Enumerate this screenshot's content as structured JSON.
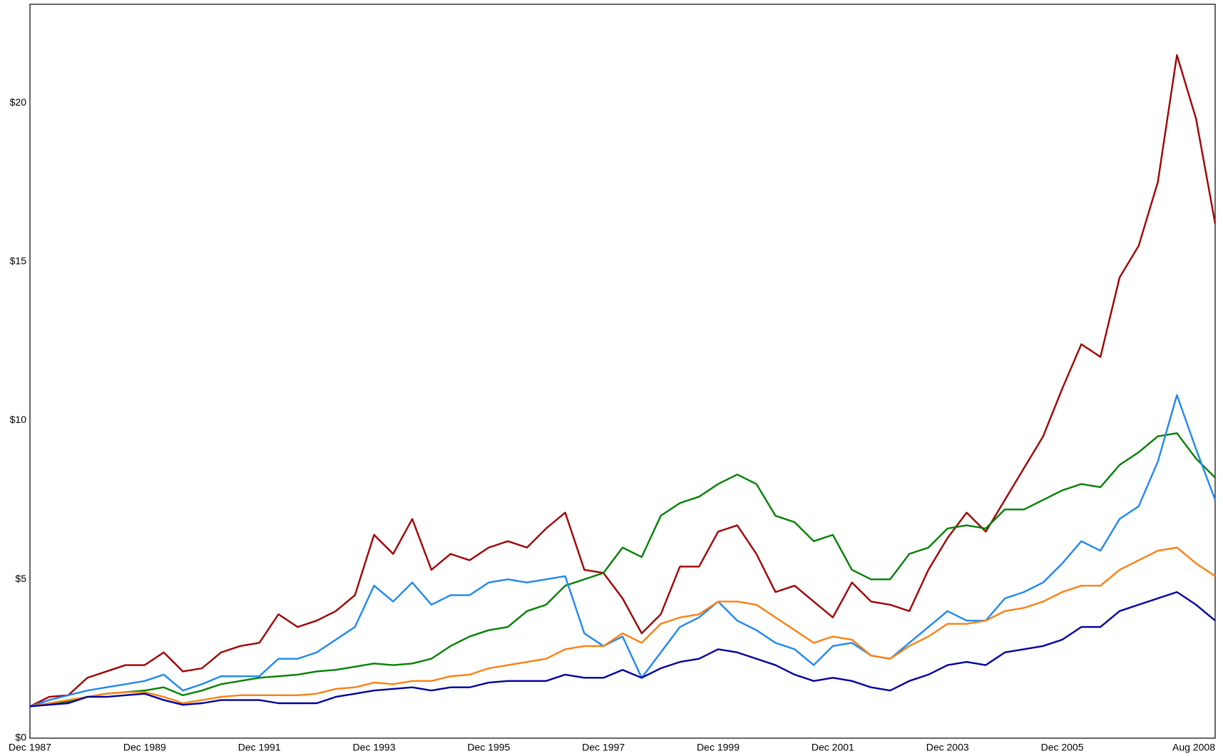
{
  "chart_data": {
    "type": "line",
    "x": [
      "Dec 1987",
      "Apr 1988",
      "Aug 1988",
      "Dec 1988",
      "Apr 1989",
      "Aug 1989",
      "Dec 1989",
      "Apr 1990",
      "Aug 1990",
      "Dec 1990",
      "Apr 1991",
      "Aug 1991",
      "Dec 1991",
      "Apr 1992",
      "Aug 1992",
      "Dec 1992",
      "Apr 1993",
      "Aug 1993",
      "Dec 1993",
      "Apr 1994",
      "Aug 1994",
      "Dec 1994",
      "Apr 1995",
      "Aug 1995",
      "Dec 1995",
      "Apr 1996",
      "Aug 1996",
      "Dec 1996",
      "Apr 1997",
      "Aug 1997",
      "Dec 1997",
      "Apr 1998",
      "Aug 1998",
      "Dec 1998",
      "Apr 1999",
      "Aug 1999",
      "Dec 1999",
      "Apr 2000",
      "Aug 2000",
      "Dec 2000",
      "Apr 2001",
      "Aug 2001",
      "Dec 2001",
      "Apr 2002",
      "Aug 2002",
      "Dec 2002",
      "Apr 2003",
      "Aug 2003",
      "Dec 2003",
      "Apr 2004",
      "Aug 2004",
      "Dec 2004",
      "Apr 2005",
      "Aug 2005",
      "Dec 2005",
      "Apr 2006",
      "Aug 2006",
      "Dec 2006",
      "Apr 2007",
      "Aug 2007",
      "Dec 2007",
      "Apr 2008",
      "Aug 2008"
    ],
    "xticks": [
      "Dec 1987",
      "Dec 1989",
      "Dec 1991",
      "Dec 1993",
      "Dec 1995",
      "Dec 1997",
      "Dec 1999",
      "Dec 2001",
      "Dec 2003",
      "Dec 2005",
      "Aug 2008"
    ],
    "ylim": [
      0,
      23.1
    ],
    "yticks": [
      {
        "value": 0,
        "label": "$0"
      },
      {
        "value": 5,
        "label": "$5"
      },
      {
        "value": 10,
        "label": "$10"
      },
      {
        "value": 15,
        "label": "$15"
      },
      {
        "value": 20,
        "label": "$20"
      }
    ],
    "series": [
      {
        "color": "#a00000",
        "values": [
          1.0,
          1.3,
          1.35,
          1.9,
          2.1,
          2.3,
          2.3,
          2.7,
          2.1,
          2.2,
          2.7,
          2.9,
          3.0,
          3.9,
          3.5,
          3.7,
          4.0,
          4.5,
          6.4,
          5.8,
          6.9,
          5.3,
          5.8,
          5.6,
          6.0,
          6.2,
          6.0,
          6.6,
          7.1,
          5.3,
          5.2,
          4.4,
          3.3,
          3.9,
          5.4,
          5.4,
          6.5,
          6.7,
          5.8,
          4.6,
          4.8,
          4.3,
          3.8,
          4.9,
          4.3,
          4.2,
          4.0,
          5.3,
          6.3,
          7.1,
          6.5,
          7.5,
          8.5,
          9.5,
          11.0,
          12.4,
          12.0,
          14.5,
          15.5,
          17.5,
          21.5,
          19.5,
          16.2
        ]
      },
      {
        "color": "#008000",
        "values": [
          1.0,
          1.1,
          1.15,
          1.3,
          1.4,
          1.45,
          1.5,
          1.6,
          1.35,
          1.5,
          1.7,
          1.8,
          1.9,
          1.95,
          2.0,
          2.1,
          2.15,
          2.25,
          2.35,
          2.3,
          2.35,
          2.5,
          2.9,
          3.2,
          3.4,
          3.5,
          4.0,
          4.2,
          4.8,
          5.0,
          5.2,
          6.0,
          5.7,
          7.0,
          7.4,
          7.6,
          8.0,
          8.3,
          8.0,
          7.0,
          6.8,
          6.2,
          6.4,
          5.3,
          5.0,
          5.0,
          5.8,
          6.0,
          6.6,
          6.7,
          6.6,
          7.2,
          7.2,
          7.5,
          7.8,
          8.0,
          7.9,
          8.6,
          9.0,
          9.5,
          9.6,
          8.8,
          8.2
        ]
      },
      {
        "color": "#1e88f0",
        "values": [
          1.0,
          1.2,
          1.35,
          1.5,
          1.6,
          1.7,
          1.8,
          2.0,
          1.5,
          1.7,
          1.95,
          1.95,
          1.95,
          2.5,
          2.5,
          2.7,
          3.1,
          3.5,
          4.8,
          4.3,
          4.9,
          4.2,
          4.5,
          4.5,
          4.9,
          5.0,
          4.9,
          5.0,
          5.1,
          3.3,
          2.9,
          3.2,
          1.9,
          2.7,
          3.5,
          3.8,
          4.3,
          3.7,
          3.4,
          3.0,
          2.8,
          2.3,
          2.9,
          3.0,
          2.6,
          2.5,
          3.0,
          3.5,
          4.0,
          3.7,
          3.7,
          4.4,
          4.6,
          4.9,
          5.5,
          6.2,
          5.9,
          6.9,
          7.3,
          8.7,
          10.8,
          9.1,
          7.5
        ]
      },
      {
        "color": "#ff8010",
        "values": [
          1.0,
          1.1,
          1.2,
          1.3,
          1.4,
          1.45,
          1.45,
          1.3,
          1.1,
          1.2,
          1.3,
          1.35,
          1.35,
          1.35,
          1.35,
          1.4,
          1.55,
          1.6,
          1.75,
          1.7,
          1.8,
          1.8,
          1.95,
          2.0,
          2.2,
          2.3,
          2.4,
          2.5,
          2.8,
          2.9,
          2.9,
          3.3,
          3.0,
          3.6,
          3.8,
          3.9,
          4.3,
          4.3,
          4.2,
          3.8,
          3.4,
          3.0,
          3.2,
          3.1,
          2.6,
          2.5,
          2.9,
          3.2,
          3.6,
          3.6,
          3.7,
          4.0,
          4.1,
          4.3,
          4.6,
          4.8,
          4.8,
          5.3,
          5.6,
          5.9,
          6.0,
          5.5,
          5.1
        ]
      },
      {
        "color": "#0000a0",
        "values": [
          1.0,
          1.05,
          1.1,
          1.3,
          1.3,
          1.35,
          1.4,
          1.2,
          1.05,
          1.1,
          1.2,
          1.2,
          1.2,
          1.1,
          1.1,
          1.1,
          1.3,
          1.4,
          1.5,
          1.55,
          1.6,
          1.5,
          1.6,
          1.6,
          1.75,
          1.8,
          1.8,
          1.8,
          2.0,
          1.9,
          1.9,
          2.15,
          1.9,
          2.2,
          2.4,
          2.5,
          2.8,
          2.7,
          2.5,
          2.3,
          2.0,
          1.8,
          1.9,
          1.8,
          1.6,
          1.5,
          1.8,
          2.0,
          2.3,
          2.4,
          2.3,
          2.7,
          2.8,
          2.9,
          3.1,
          3.5,
          3.5,
          4.0,
          4.2,
          4.4,
          4.6,
          4.2,
          3.7
        ]
      }
    ]
  }
}
